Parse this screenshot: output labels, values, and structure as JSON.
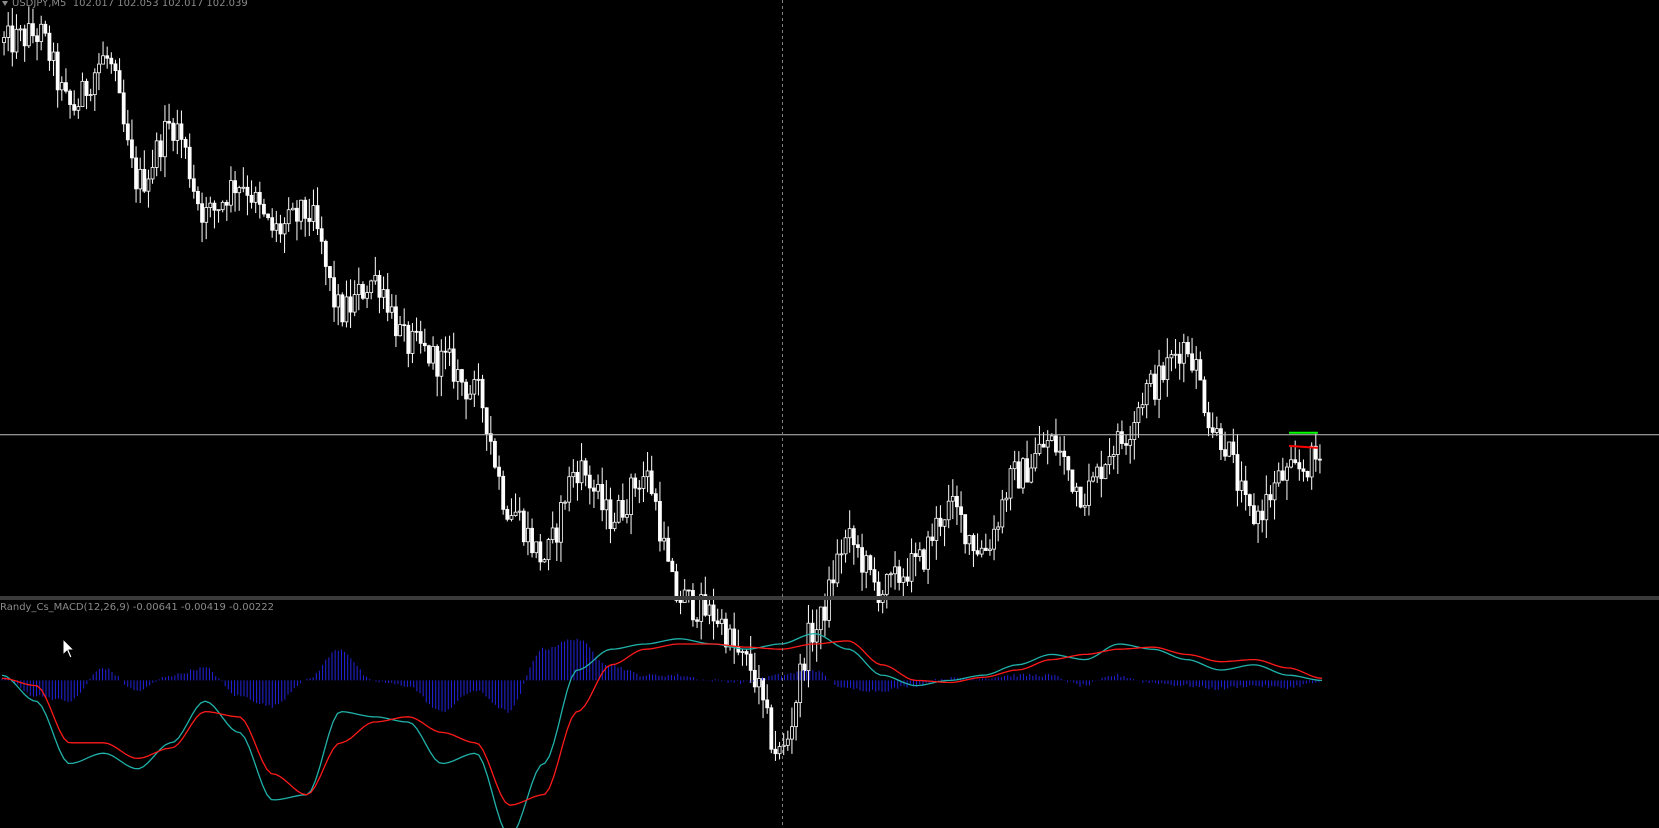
{
  "window": {
    "symbol_label": "USDJPY,M5",
    "ohlc_label": "102.017 102.053 102.017 102.039",
    "indicator_label": "Randy_Cs_MACD(12,26,9) -0.00641 -0.00419 -0.00222"
  },
  "colors": {
    "background": "#000000",
    "candle": "#ffffff",
    "price_line": "#c0c0c0",
    "crosshair": "#808080",
    "panel_separator": "#3a3a3a",
    "histogram": "#2222dd",
    "macd_line": "#20b2aa",
    "signal_line": "#ff1a1a",
    "tp_marker": "#00ff00",
    "sl_marker": "#ff0000"
  },
  "icons": {
    "collapse": "triangle-down-icon",
    "cursor": "mouse-pointer-icon"
  },
  "chart_data": [
    {
      "type": "candlestick",
      "symbol": "USDJPY",
      "timeframe": "M5",
      "ylim": [
        102.02,
        102.09
      ],
      "current_price": 102.039,
      "close_path": [
        102.087,
        102.088,
        102.079,
        102.085,
        102.07,
        102.077,
        102.066,
        102.07,
        102.064,
        102.066,
        102.054,
        102.058,
        102.05,
        102.048,
        102.044,
        102.03,
        102.024,
        102.035,
        102.029,
        102.034,
        102.019,
        102.017,
        102.011,
        102.0,
        102.015,
        102.026,
        102.02,
        102.023,
        102.03,
        102.025,
        102.034,
        102.038,
        102.032,
        102.038,
        102.045,
        102.05,
        102.039,
        102.029,
        102.034,
        102.036
      ],
      "trade_markers": {
        "take_profit": 102.039,
        "stop_loss": 102.038
      }
    },
    {
      "type": "line",
      "name": "Randy_Cs_MACD(12,26,9)",
      "values_shown": [
        -0.00641,
        -0.00419,
        -0.00222
      ],
      "ylim": [
        -0.014,
        0.006
      ],
      "macd_path": [
        0.0005,
        -0.002,
        -0.008,
        -0.007,
        -0.0085,
        -0.006,
        -0.002,
        -0.005,
        -0.0115,
        -0.011,
        -0.003,
        -0.0035,
        -0.004,
        -0.008,
        -0.007,
        -0.015,
        -0.008,
        0.001,
        0.003,
        0.0035,
        0.004,
        0.0035,
        0.003,
        0.0035,
        0.0045,
        0.003,
        0.0005,
        -0.0005,
        0.0,
        0.0005,
        0.0015,
        0.0025,
        0.002,
        0.0035,
        0.003,
        0.002,
        0.001,
        0.0015,
        0.0005,
        0.0
      ],
      "signal_path": [
        0.0002,
        -0.0005,
        -0.006,
        -0.006,
        -0.0075,
        -0.0065,
        -0.003,
        -0.0035,
        -0.009,
        -0.011,
        -0.006,
        -0.004,
        -0.0035,
        -0.005,
        -0.006,
        -0.012,
        -0.011,
        -0.003,
        0.0015,
        0.003,
        0.0035,
        0.0035,
        0.0032,
        0.003,
        0.0035,
        0.0038,
        0.0015,
        0.0,
        -0.0002,
        0.0003,
        0.001,
        0.002,
        0.0025,
        0.003,
        0.0032,
        0.0025,
        0.0018,
        0.002,
        0.0012,
        0.0002
      ],
      "histogram_path": [
        0.0003,
        -0.0015,
        -0.002,
        0.0012,
        -0.001,
        0.0005,
        0.0012,
        -0.0015,
        -0.0025,
        0.0,
        0.003,
        -0.0001,
        -0.0005,
        -0.003,
        -0.001,
        -0.003,
        0.003,
        0.004,
        0.0015,
        0.0005,
        0.0005,
        0.0,
        -0.0002,
        0.0005,
        0.001,
        -0.0008,
        -0.001,
        -0.0005,
        0.0002,
        0.0002,
        0.0005,
        0.0005,
        -0.0005,
        0.0005,
        -0.0002,
        -0.0005,
        -0.0008,
        -0.0005,
        -0.0007,
        -0.0002
      ]
    }
  ]
}
